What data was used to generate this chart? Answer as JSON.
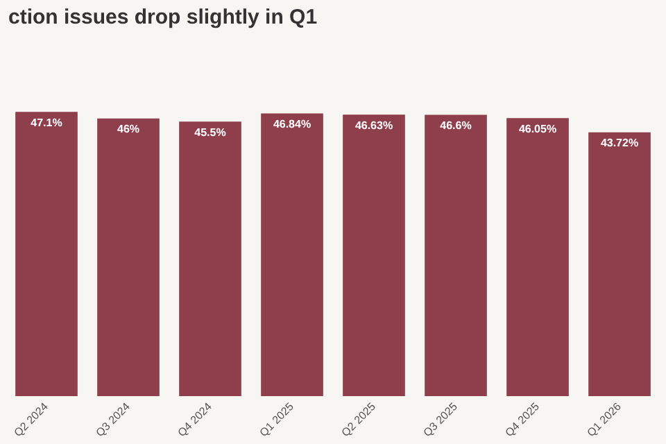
{
  "chart_data": {
    "type": "bar",
    "title": "ction issues drop slightly in Q1",
    "categories": [
      "Q2 2024",
      "Q3 2024",
      "Q4 2024",
      "Q1 2025",
      "Q2 2025",
      "Q3 2025",
      "Q4 2025",
      "Q1 2026"
    ],
    "values": [
      47.1,
      46,
      45.5,
      46.84,
      46.63,
      46.6,
      46.05,
      43.72
    ],
    "value_labels": [
      "47.1%",
      "46%",
      "45.5%",
      "46.84%",
      "46.63%",
      "46.6%",
      "46.05%",
      "43.72%"
    ],
    "color": "#8e3f4b",
    "grid": false,
    "legend": false
  }
}
